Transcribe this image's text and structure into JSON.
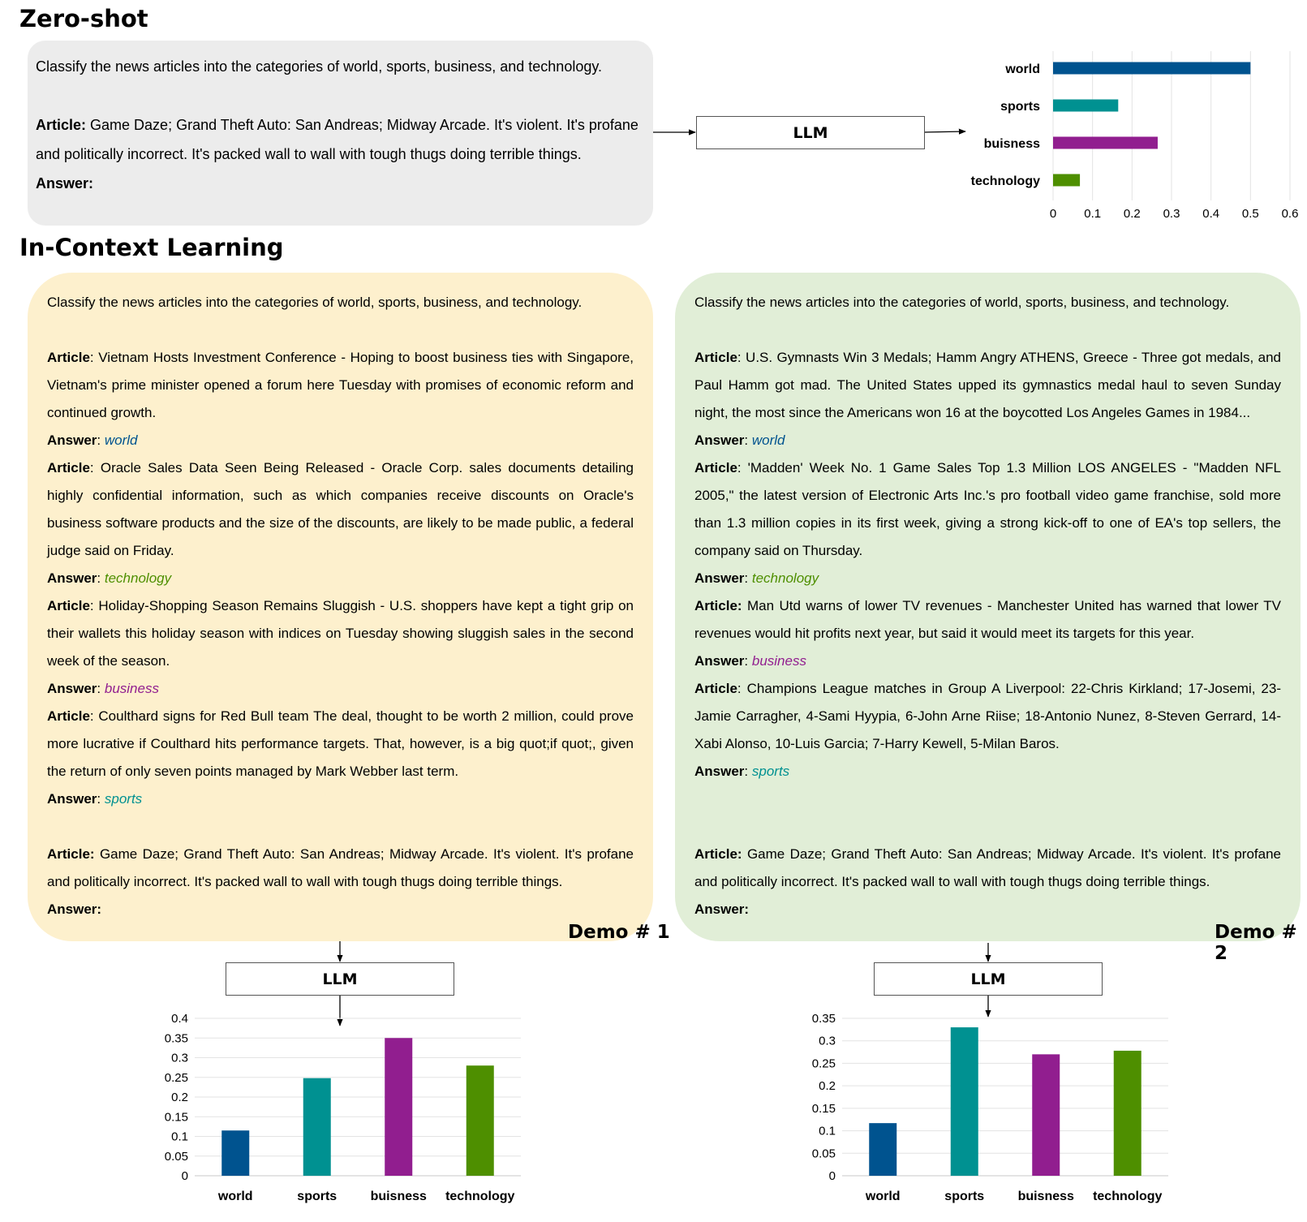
{
  "zero_shot": {
    "title": "Zero-shot",
    "instruction": "Classify the news articles into the categories of world, sports, business, and technology.",
    "article_label": "Article:",
    "article_text": "Game Daze; Grand Theft Auto: San Andreas; Midway Arcade. It's violent. It's profane and politically incorrect. It's packed wall to wall with tough thugs doing terrible things.",
    "answer_label": "Answer:",
    "llm_label": "LLM"
  },
  "icl": {
    "title": "In-Context Learning",
    "demo1": {
      "instruction": "Classify the news articles into the categories of world, sports, business, and technology.",
      "examples": [
        {
          "article_label": "Article",
          "text": ": Vietnam Hosts Investment Conference - Hoping to boost business ties with Singapore, Vietnam's prime minister opened a forum here Tuesday with promises of economic reform and continued growth.",
          "answer_label": "Answer",
          "answer": "world"
        },
        {
          "article_label": "Article",
          "text": ": Oracle Sales Data Seen Being Released - Oracle Corp. sales documents detailing highly confidential information, such as which companies receive discounts on Oracle's business software products and the size of the discounts, are likely to be made public, a federal judge said on Friday.",
          "answer_label": "Answer",
          "answer": "technology"
        },
        {
          "article_label": "Article",
          "text": ": Holiday-Shopping Season Remains Sluggish - U.S. shoppers have kept a tight grip on their wallets this holiday season with indices on Tuesday showing sluggish sales in the second week of the season.",
          "answer_label": "Answer",
          "answer": "business"
        },
        {
          "article_label": "Article",
          "text": ": Coulthard signs for Red Bull team The deal, thought to be worth 2 million, could prove more lucrative if Coulthard hits performance targets. That, however, is a big quot;if quot;, given the return of only seven points managed by Mark Webber last term.",
          "answer_label": "Answer",
          "answer": "sports"
        }
      ],
      "query_label": "Article:",
      "query_text": " Game Daze; Grand Theft Auto: San Andreas; Midway Arcade. It's violent. It's profane and politically incorrect. It's packed wall to wall with tough thugs doing terrible things.",
      "answer_label": "Answer:",
      "label": "Demo # 1",
      "llm_label": "LLM"
    },
    "demo2": {
      "instruction": "Classify the news articles into the categories of world, sports, business, and technology.",
      "examples": [
        {
          "article_label": "Article",
          "text": ": U.S. Gymnasts Win 3 Medals; Hamm Angry ATHENS, Greece - Three got medals, and Paul Hamm got mad. The United States upped its gymnastics medal haul to seven Sunday night, the most since the Americans won 16 at the boycotted Los Angeles Games in 1984...",
          "answer_label": "Answer",
          "answer": "world"
        },
        {
          "article_label": "Article",
          "text": ": 'Madden' Week No. 1 Game Sales Top 1.3 Million LOS ANGELES - \"Madden NFL 2005,\" the latest version of Electronic Arts Inc.'s pro football video game franchise, sold more than 1.3 million copies in its first week, giving a strong kick-off to one of EA's top sellers, the company said on Thursday.",
          "answer_label": "Answer",
          "answer": "technology"
        },
        {
          "article_label": "Article:",
          "text": " Man Utd warns of lower TV revenues - Manchester United has warned that lower TV revenues would hit profits next year, but said it would meet its targets for this year.",
          "answer_label": "Answer",
          "answer": "business"
        },
        {
          "article_label": "Article",
          "text": ": Champions League matches in Group A Liverpool: 22-Chris Kirkland; 17-Josemi, 23-Jamie Carragher, 4-Sami Hyypia, 6-John Arne Riise; 18-Antonio Nunez, 8-Steven Gerrard, 14-Xabi Alonso, 10-Luis Garcia; 7-Harry Kewell, 5-Milan Baros.",
          "answer_label": "Answer",
          "answer": "sports"
        }
      ],
      "query_label": "Article:",
      "query_text": " Game Daze; Grand Theft Auto: San Andreas; Midway Arcade. It's violent. It's profane and politically incorrect. It's packed wall to wall with tough thugs doing terrible things.",
      "answer_label": "Answer:",
      "label": "Demo # 2",
      "llm_label": "LLM"
    }
  },
  "colors": {
    "world": "#00538f",
    "sports": "#009191",
    "business": "#911e8f",
    "technology": "#4e8f00"
  },
  "chart_data": [
    {
      "type": "bar",
      "orientation": "horizontal",
      "categories": [
        "world",
        "sports",
        "buisness",
        "technology"
      ],
      "values": [
        0.5,
        0.165,
        0.265,
        0.068
      ],
      "xlim": [
        0,
        0.6
      ],
      "ticks": [
        "0",
        "0.1",
        "0.2",
        "0.3",
        "0.4",
        "0.5",
        "0.6"
      ],
      "grid": true
    },
    {
      "type": "bar",
      "categories": [
        "world",
        "sports",
        "buisness",
        "technology"
      ],
      "values": [
        0.115,
        0.248,
        0.35,
        0.28
      ],
      "ylim": [
        0,
        0.4
      ],
      "ticks": [
        "0",
        "0.05",
        "0.1",
        "0.15",
        "0.2",
        "0.25",
        "0.3",
        "0.35",
        "0.4"
      ],
      "grid": true
    },
    {
      "type": "bar",
      "categories": [
        "world",
        "sports",
        "buisness",
        "technology"
      ],
      "values": [
        0.117,
        0.33,
        0.27,
        0.278
      ],
      "ylim": [
        0,
        0.35
      ],
      "ticks": [
        "0",
        "0.05",
        "0.1",
        "0.15",
        "0.2",
        "0.25",
        "0.3",
        "0.35"
      ],
      "grid": true
    }
  ]
}
